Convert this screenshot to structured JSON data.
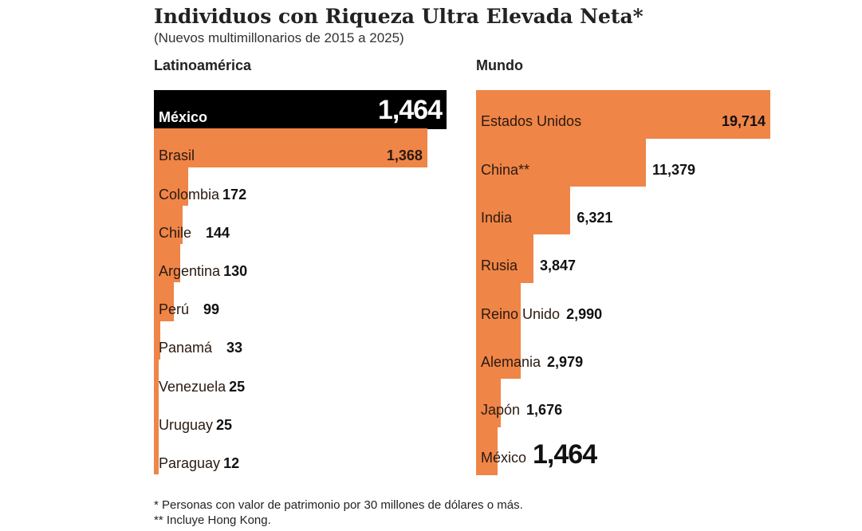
{
  "chart_data": [
    {
      "type": "bar",
      "title": "Individuos con Riqueza Ultra Elevada Neta*",
      "subtitle": "(Nuevos multimillonarios de 2015 a 2025)",
      "panel": "Latinoamérica",
      "orientation": "horizontal",
      "categories": [
        "México",
        "Brasil",
        "Colombia",
        "Chile",
        "Argentina",
        "Perú",
        "Panamá",
        "Venezuela",
        "Uruguay",
        "Paraguay"
      ],
      "labels": [
        "1,464",
        "1,368",
        "172",
        "144",
        "130",
        "99",
        "33",
        "25",
        "25",
        "12"
      ],
      "values": [
        1464,
        1368,
        172,
        144,
        130,
        99,
        33,
        25,
        25,
        12
      ],
      "highlight": "México",
      "colors": {
        "bar": "#ef8547",
        "highlight": "#000000"
      }
    },
    {
      "type": "bar",
      "panel": "Mundo",
      "orientation": "horizontal",
      "categories": [
        "Estados Unidos",
        "China**",
        "India",
        "Rusia",
        "Reino Unido",
        "Alemania",
        "Japón",
        "México"
      ],
      "labels": [
        "19,714",
        "11,379",
        "6,321",
        "3,847",
        "2,990",
        "2,979",
        "1,676",
        "1,464"
      ],
      "values": [
        19714,
        11379,
        6321,
        3847,
        2990,
        2979,
        1676,
        1464
      ],
      "colors": {
        "bar": "#ef8547"
      }
    }
  ],
  "notes": [
    "* Personas con valor de patrimonio por 30 millones de dólares o más.",
    "** Incluye Hong Kong."
  ]
}
